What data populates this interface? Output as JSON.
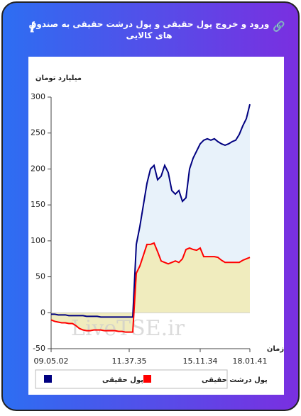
{
  "chart_data": {
    "type": "line",
    "title": "ورود و خروج پول حقیقی و پول درشت حقیقی به صندوق های کالایی",
    "y_label": "میلیارد تومان",
    "x_label": "زمان",
    "watermark": "LiveTSE.ir",
    "categories": [
      "09.05.02",
      null,
      null,
      null,
      null,
      null,
      null,
      null,
      null,
      null,
      null,
      null,
      null,
      null,
      null,
      null,
      null,
      null,
      null,
      null,
      null,
      null,
      "11.37.35",
      null,
      null,
      null,
      null,
      null,
      null,
      null,
      null,
      null,
      null,
      null,
      null,
      null,
      null,
      null,
      null,
      null,
      null,
      null,
      "15.11.34",
      null,
      null,
      null,
      null,
      null,
      null,
      null,
      null,
      null,
      null,
      null,
      null,
      null,
      "18.01.41"
    ],
    "series": [
      {
        "name": "پول حقیقی",
        "color": "#000080",
        "fill": "#e8f2fa",
        "values": [
          -2,
          -2,
          -3,
          -3,
          -3,
          -4,
          -4,
          -4,
          -4,
          -4,
          -5,
          -5,
          -5,
          -5,
          -6,
          -6,
          -6,
          -6,
          -6,
          -6,
          -6,
          -6,
          -6,
          -6,
          95,
          120,
          150,
          180,
          200,
          205,
          185,
          190,
          205,
          195,
          170,
          165,
          170,
          155,
          160,
          200,
          215,
          225,
          235,
          240,
          242,
          240,
          242,
          238,
          235,
          233,
          235,
          238,
          240,
          248,
          260,
          270,
          290
        ]
      },
      {
        "name": "پول درشت حقیقی",
        "color": "#ff0000",
        "fill": "#f0ecbe",
        "values": [
          -10,
          -12,
          -13,
          -14,
          -14,
          -15,
          -15,
          -18,
          -22,
          -24,
          -25,
          -25,
          -24,
          -24,
          -24,
          -25,
          -25,
          -25,
          -25,
          -26,
          -26,
          -27,
          -27,
          -27,
          55,
          65,
          80,
          95,
          95,
          97,
          85,
          72,
          70,
          68,
          70,
          72,
          70,
          75,
          88,
          90,
          88,
          87,
          90,
          78,
          78,
          78,
          78,
          77,
          73,
          70,
          70,
          70,
          70,
          70,
          73,
          75,
          77
        ]
      }
    ],
    "ylim": [
      -50,
      300
    ],
    "yticks": [
      -50,
      0,
      50,
      100,
      150,
      200,
      250,
      300
    ]
  }
}
